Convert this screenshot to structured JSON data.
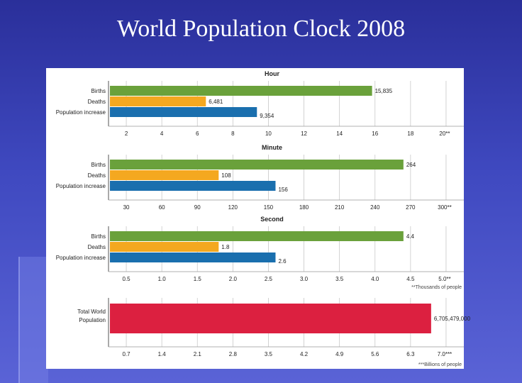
{
  "slide": {
    "title": "World Population Clock 2008"
  },
  "colors": {
    "births": "#6aa13b",
    "deaths": "#f4a820",
    "increase": "#1a6fae",
    "total": "#dc2040"
  },
  "chart_data": [
    {
      "type": "bar",
      "title": "Hour",
      "categories": [
        "Births",
        "Deaths",
        "Population increase"
      ],
      "values": [
        15835,
        6481,
        9354
      ],
      "value_labels": [
        "15,835",
        "6,481",
        "9,354"
      ],
      "scale_divisor": 1000,
      "xlim": [
        1,
        21
      ],
      "ticks": [
        2,
        4,
        6,
        8,
        10,
        12,
        14,
        16,
        18,
        20
      ],
      "tick_labels": [
        "2",
        "4",
        "6",
        "8",
        "10",
        "12",
        "14",
        "16",
        "18",
        "20**"
      ]
    },
    {
      "type": "bar",
      "title": "Minute",
      "categories": [
        "Births",
        "Deaths",
        "Population increase"
      ],
      "values": [
        264,
        108,
        156
      ],
      "value_labels": [
        "264",
        "108",
        "156"
      ],
      "scale_divisor": 1,
      "xlim": [
        15,
        315
      ],
      "ticks": [
        30,
        60,
        90,
        120,
        150,
        180,
        210,
        240,
        270,
        300
      ],
      "tick_labels": [
        "30",
        "60",
        "90",
        "120",
        "150",
        "180",
        "210",
        "240",
        "270",
        "300**"
      ]
    },
    {
      "type": "bar",
      "title": "Second",
      "categories": [
        "Births",
        "Deaths",
        "Population increase"
      ],
      "values": [
        4.4,
        1.8,
        2.6
      ],
      "value_labels": [
        "4.4",
        "1.8",
        "2.6"
      ],
      "scale_divisor": 1,
      "xlim": [
        0.25,
        5.25
      ],
      "ticks": [
        0.5,
        1.0,
        1.5,
        2.0,
        2.5,
        3.0,
        3.5,
        4.0,
        4.5,
        5.0
      ],
      "tick_labels": [
        "0.5",
        "1.0",
        "1.5",
        "2.0",
        "2.5",
        "3.0",
        "3.5",
        "4.0",
        "4.5",
        "5.0**"
      ],
      "note": "**Thousands of people"
    },
    {
      "type": "bar",
      "title": "",
      "categories": [
        "Total World Population"
      ],
      "category_lines": [
        "Total World",
        "Population"
      ],
      "values": [
        6705479000
      ],
      "value_labels": [
        "6,705,479,000"
      ],
      "scale_divisor": 1000000000,
      "xlim": [
        0.35,
        7.35
      ],
      "ticks": [
        0.7,
        1.4,
        2.1,
        2.8,
        3.5,
        4.2,
        4.9,
        5.6,
        6.3,
        7.0
      ],
      "tick_labels": [
        "0.7",
        "1.4",
        "2.1",
        "2.8",
        "3.5",
        "4.2",
        "4.9",
        "5.6",
        "6.3",
        "7.0***"
      ],
      "note": "***Billions of people"
    }
  ]
}
